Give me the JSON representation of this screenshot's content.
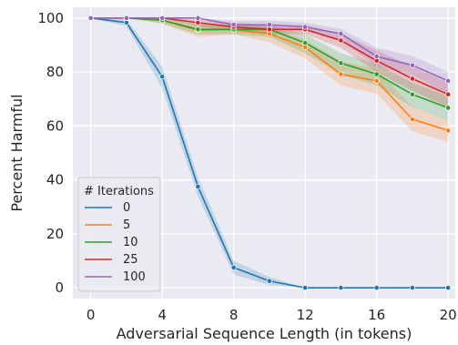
{
  "chart_data": {
    "type": "line",
    "title": "",
    "xlabel": "Adversarial Sequence Length (in tokens)",
    "ylabel": "Percent Harmful",
    "xlim": [
      -1,
      20.4
    ],
    "ylim": [
      -4,
      104
    ],
    "x_ticks": [
      0,
      4,
      8,
      12,
      16,
      20
    ],
    "y_ticks": [
      0,
      20,
      40,
      60,
      80,
      100
    ],
    "grid": true,
    "background": "#eaeaf2",
    "legend": {
      "title": "# Iterations",
      "placement": "lower-left"
    },
    "x": [
      0,
      2,
      4,
      6,
      8,
      10,
      12,
      14,
      16,
      18,
      20
    ],
    "series": [
      {
        "name": "0",
        "color": "#1f77b4",
        "values": [
          100,
          98.3,
          78.3,
          37.5,
          7.5,
          2.5,
          0,
          0,
          0,
          0,
          0
        ],
        "lower": [
          100,
          97,
          74,
          34,
          5,
          1,
          0,
          0,
          0,
          0,
          0
        ],
        "upper": [
          100,
          99.5,
          82,
          41,
          10,
          4,
          0,
          0,
          0,
          0,
          0
        ]
      },
      {
        "name": "5",
        "color": "#ff7f0e",
        "values": [
          100,
          100,
          99.2,
          95.5,
          95.8,
          94.2,
          89.2,
          79.2,
          76.7,
          62.5,
          58.3
        ],
        "lower": [
          100,
          100,
          98,
          93,
          94,
          91,
          85,
          75,
          72,
          58,
          54
        ],
        "upper": [
          100,
          100,
          100,
          97.5,
          97.5,
          96.5,
          92,
          84,
          81,
          67,
          62
        ]
      },
      {
        "name": "10",
        "color": "#2ca02c",
        "values": [
          100,
          100,
          99.2,
          95.8,
          95.8,
          95.8,
          90.8,
          83.3,
          79.2,
          71.7,
          66.7
        ],
        "lower": [
          100,
          100,
          98,
          94,
          94,
          93,
          87,
          79,
          75,
          67,
          62
        ],
        "upper": [
          100,
          100,
          100,
          97.5,
          97.5,
          97.5,
          94,
          87,
          83,
          76,
          71
        ]
      },
      {
        "name": "25",
        "color": "#d62728",
        "values": [
          100,
          100,
          100,
          98.3,
          96.7,
          95.8,
          95.8,
          91.7,
          84.2,
          77.5,
          71.7
        ],
        "lower": [
          100,
          100,
          100,
          97,
          95,
          94,
          94,
          89,
          80,
          73,
          67
        ],
        "upper": [
          100,
          100,
          100,
          99.5,
          98.3,
          97.5,
          97.5,
          94,
          88,
          82,
          76
        ]
      },
      {
        "name": "100",
        "color": "#9467bd",
        "values": [
          100,
          100,
          100,
          100,
          97.5,
          97.5,
          96.7,
          94.2,
          85.8,
          82.5,
          76.7
        ],
        "lower": [
          100,
          100,
          100,
          100,
          96,
          96,
          95,
          92,
          82,
          79,
          72
        ],
        "upper": [
          100,
          100,
          100,
          100,
          99,
          99,
          98.3,
          96,
          89,
          86,
          80
        ]
      }
    ]
  }
}
